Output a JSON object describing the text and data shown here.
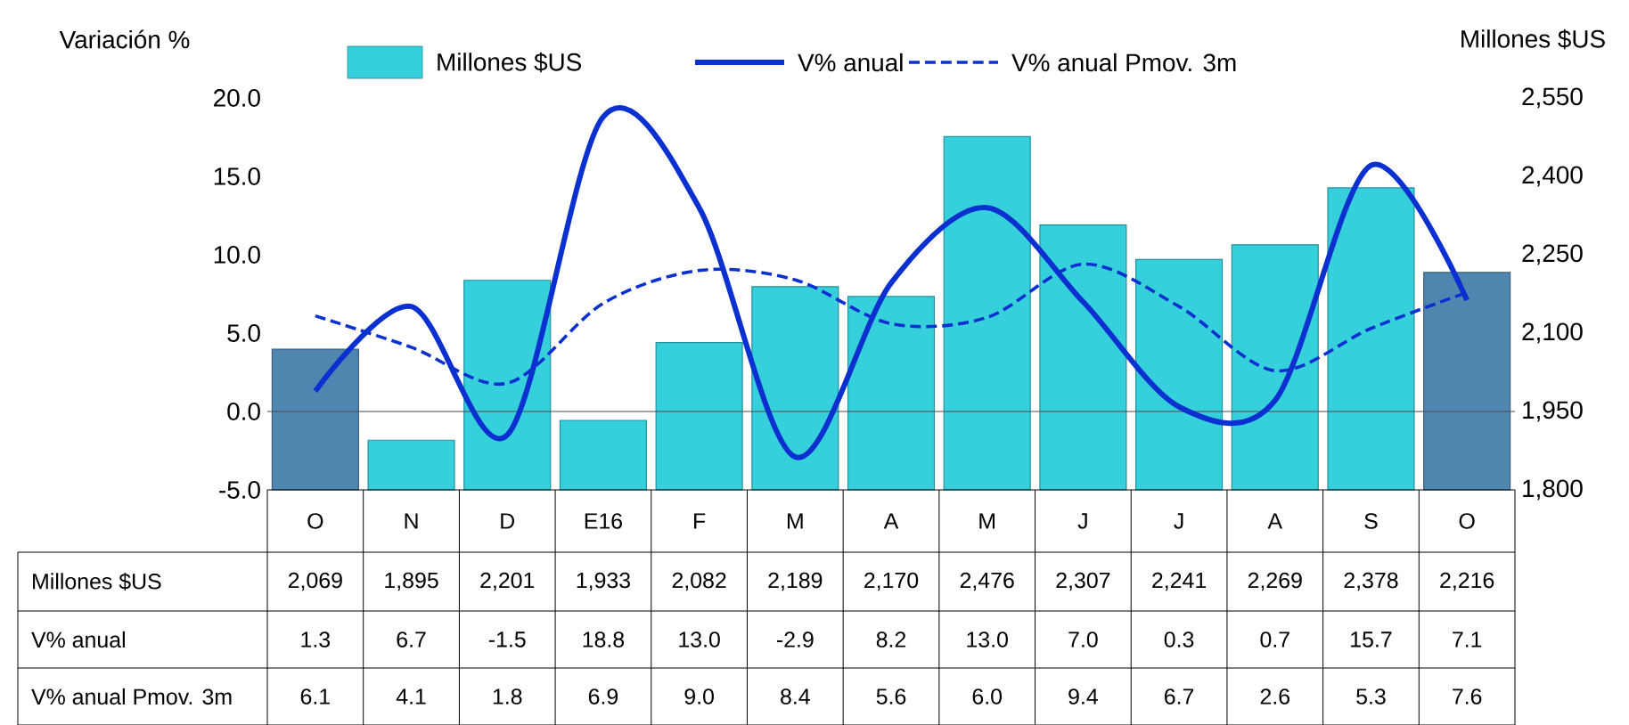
{
  "chart_data": {
    "type": "bar",
    "categories": [
      "O",
      "N",
      "D",
      "E16",
      "F",
      "M",
      "A",
      "M",
      "J",
      "J",
      "A",
      "S",
      "O"
    ],
    "series": [
      {
        "name": "Millones $US",
        "axis": "y2",
        "value_labels": [
          "2,069",
          "1,895",
          "2,201",
          "1,933",
          "2,082",
          "2,189",
          "2,170",
          "2,476",
          "2,307",
          "2,241",
          "2,269",
          "2,378",
          "2,216"
        ],
        "colors": [
          "#4f86b0",
          "#36cfdc",
          "#36cfdc",
          "#36cfdc",
          "#36cfdc",
          "#36cfdc",
          "#36cfdc",
          "#36cfdc",
          "#36cfdc",
          "#36cfdc",
          "#36cfdc",
          "#36cfdc",
          "#4f86b0"
        ],
        "values": [
          2069,
          1895,
          2201,
          1933,
          2082,
          2189,
          2170,
          2476,
          2307,
          2241,
          2269,
          2378,
          2216
        ]
      },
      {
        "name": "V% anual",
        "type": "line",
        "color": "#0a30d0",
        "value_labels": [
          "1.3",
          "6.7",
          "-1.5",
          "18.8",
          "13.0",
          "-2.9",
          "8.2",
          "13.0",
          "7.0",
          "0.3",
          "0.7",
          "15.7",
          "7.1"
        ],
        "values": [
          1.3,
          6.7,
          -1.5,
          18.8,
          13.0,
          -2.9,
          8.2,
          13.0,
          7.0,
          0.3,
          0.7,
          15.7,
          7.1
        ]
      },
      {
        "name": "V% anual Pmov. 3m",
        "type": "line",
        "color": "#0a30d0",
        "line_style": "dashed",
        "value_labels": [
          "6.1",
          "4.1",
          "1.8",
          "6.9",
          "9.0",
          "8.4",
          "5.6",
          "6.0",
          "9.4",
          "6.7",
          "2.6",
          "5.3",
          "7.6"
        ],
        "values": [
          6.1,
          4.1,
          1.8,
          6.9,
          9.0,
          8.4,
          5.6,
          6.0,
          9.4,
          6.7,
          2.6,
          5.3,
          7.6
        ]
      }
    ],
    "ylabel": "Variación %",
    "y2label": "Millones $US",
    "ylim": [
      -5,
      20
    ],
    "yticks": [
      {
        "value": -5,
        "label": "-5.0"
      },
      {
        "value": 0,
        "label": "0.0"
      },
      {
        "value": 5,
        "label": "5.0"
      },
      {
        "value": 10,
        "label": "10.0"
      },
      {
        "value": 15,
        "label": "15.0"
      },
      {
        "value": 20,
        "label": "20.0"
      }
    ],
    "y2lim": [
      1800,
      2550
    ],
    "y2ticks": [
      {
        "value": 1800,
        "label": "1,800"
      },
      {
        "value": 1950,
        "label": "1,950"
      },
      {
        "value": 2100,
        "label": "2,100"
      },
      {
        "value": 2250,
        "label": "2,250"
      },
      {
        "value": 2400,
        "label": "2,400"
      },
      {
        "value": 2550,
        "label": "2,550"
      }
    ],
    "ref_lines": [
      {
        "axis": "y",
        "value": 0
      }
    ],
    "legend": "top",
    "grid": false,
    "marker": "none"
  }
}
